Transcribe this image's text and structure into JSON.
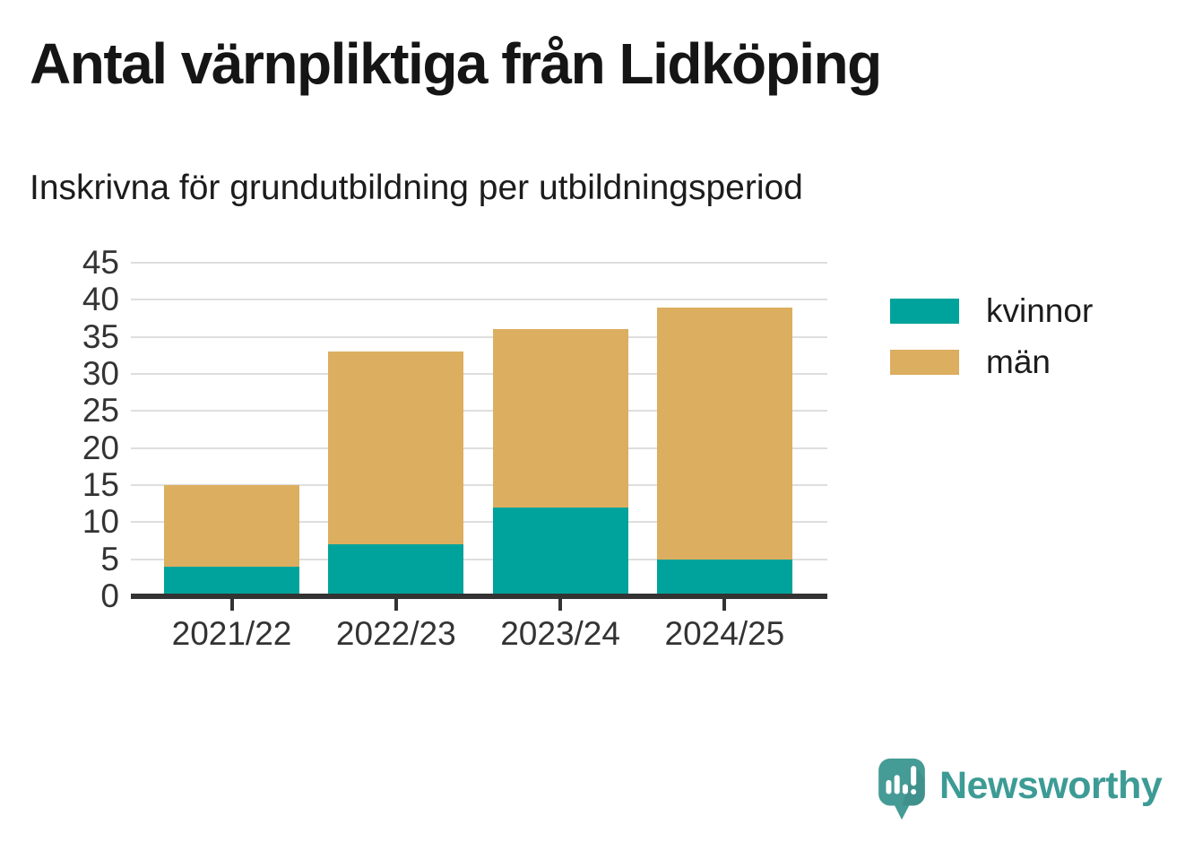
{
  "title": "Antal värnpliktiga från Lidköping",
  "subtitle": "Inskrivna för grundutbildning per utbildningsperiod",
  "footer": {
    "brand": "Newsworthy",
    "logo_icon": "newsworthy-speech-bubble-chart-icon"
  },
  "colors": {
    "kvinnor": "#00a39b",
    "man": "#dcae5f",
    "axis": "#333333",
    "gridline": "#dedede",
    "brand_teal": "#3d9b95",
    "logo_bubble": "#459b95"
  },
  "chart_data": {
    "type": "bar",
    "stacked": true,
    "title": "Antal värnpliktiga från Lidköping",
    "subtitle": "Inskrivna för grundutbildning per utbildningsperiod",
    "categories": [
      "2021/22",
      "2022/23",
      "2023/24",
      "2024/25"
    ],
    "series": [
      {
        "name": "kvinnor",
        "color": "#00a39b",
        "values": [
          4,
          7,
          12,
          5
        ]
      },
      {
        "name": "män",
        "color": "#dcae5f",
        "values": [
          11,
          26,
          24,
          34
        ]
      }
    ],
    "totals": [
      15,
      33,
      36,
      39
    ],
    "xlabel": "",
    "ylabel": "",
    "ylim": [
      0,
      45
    ],
    "yticks": [
      0,
      5,
      10,
      15,
      20,
      25,
      30,
      35,
      40,
      45
    ],
    "grid": true,
    "legend_position": "right"
  }
}
